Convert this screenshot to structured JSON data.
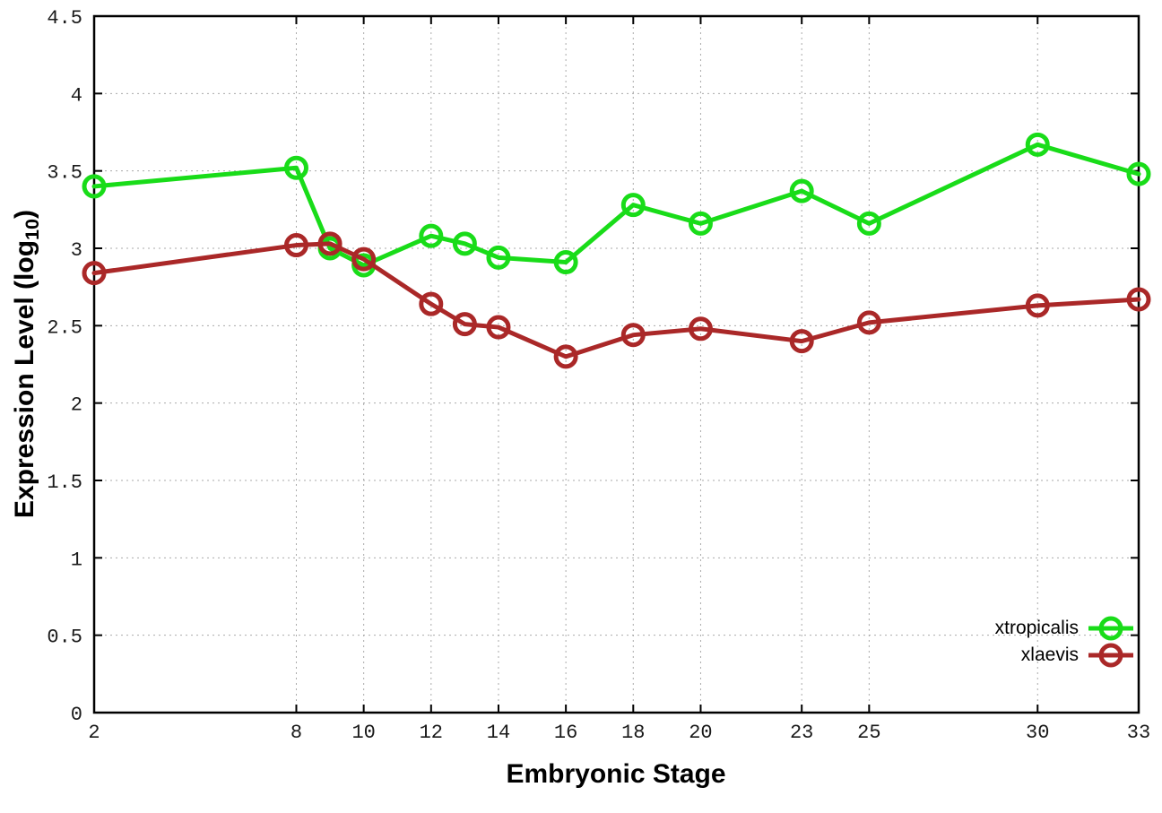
{
  "chart_data": {
    "type": "line",
    "title": "",
    "xlabel": "Embryonic Stage",
    "ylabel": "Expression Level (log10)",
    "ylabel_prefix": "Expression Level (log",
    "ylabel_sub": "10",
    "ylabel_suffix": ")",
    "x": [
      2,
      8,
      9,
      10,
      12,
      13,
      14,
      16,
      18,
      20,
      23,
      25,
      30,
      33
    ],
    "x_ticks": [
      2,
      8,
      10,
      12,
      14,
      16,
      18,
      20,
      23,
      25,
      30,
      33
    ],
    "x_tick_labels": [
      "2",
      "8",
      "10",
      "12",
      "14",
      "16",
      "18",
      "20",
      "23",
      "25",
      "30",
      "33"
    ],
    "y_ticks": [
      0,
      0.5,
      1,
      1.5,
      2,
      2.5,
      3,
      3.5,
      4,
      4.5
    ],
    "y_tick_labels": [
      "0",
      "0.5",
      "1",
      "1.5",
      "2",
      "2.5",
      "3",
      "3.5",
      "4",
      "4.5"
    ],
    "xlim": [
      2,
      33
    ],
    "ylim": [
      0,
      4.5
    ],
    "grid": true,
    "marker": "open-circle",
    "legend_position": "bottom-right",
    "series": [
      {
        "name": "xtropicalis",
        "color": "#19DC19",
        "values": [
          3.4,
          3.52,
          3.0,
          2.89,
          3.08,
          3.03,
          2.94,
          2.91,
          3.28,
          3.16,
          3.37,
          3.16,
          3.67,
          3.48
        ]
      },
      {
        "name": "xlaevis",
        "color": "#AA2828",
        "values": [
          2.84,
          3.02,
          3.03,
          2.93,
          2.64,
          2.51,
          2.49,
          2.3,
          2.44,
          2.48,
          2.4,
          2.52,
          2.63,
          2.67
        ]
      }
    ]
  }
}
